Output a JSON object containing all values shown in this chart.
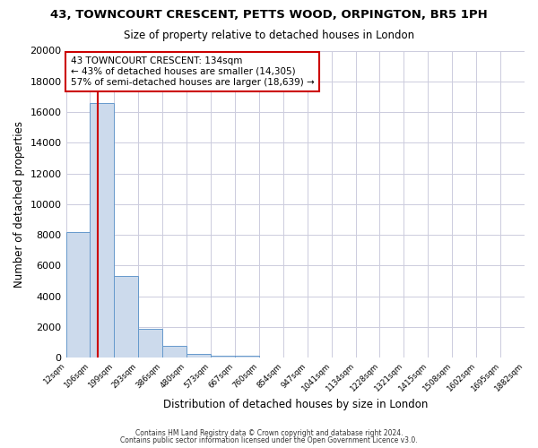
{
  "title": "43, TOWNCOURT CRESCENT, PETTS WOOD, ORPINGTON, BR5 1PH",
  "subtitle": "Size of property relative to detached houses in London",
  "xlabel": "Distribution of detached houses by size in London",
  "ylabel": "Number of detached properties",
  "bar_values": [
    8200,
    16600,
    5300,
    1850,
    750,
    250,
    150,
    150,
    0,
    0,
    0,
    0,
    0,
    0,
    0,
    0,
    0,
    0,
    0
  ],
  "bin_labels": [
    "12sqm",
    "106sqm",
    "199sqm",
    "293sqm",
    "386sqm",
    "480sqm",
    "573sqm",
    "667sqm",
    "760sqm",
    "854sqm",
    "947sqm",
    "1041sqm",
    "1134sqm",
    "1228sqm",
    "1321sqm",
    "1415sqm",
    "1508sqm",
    "1602sqm",
    "1695sqm",
    "1882sqm"
  ],
  "ylim": [
    0,
    20000
  ],
  "yticks": [
    0,
    2000,
    4000,
    6000,
    8000,
    10000,
    12000,
    14000,
    16000,
    18000,
    20000
  ],
  "bar_color": "#ccdaec",
  "bar_edge_color": "#6699cc",
  "vline_x": 1.3,
  "vline_color": "#cc0000",
  "annotation_title": "43 TOWNCOURT CRESCENT: 134sqm",
  "annotation_line1": "← 43% of detached houses are smaller (14,305)",
  "annotation_line2": "57% of semi-detached houses are larger (18,639) →",
  "annotation_box_facecolor": "#ffffff",
  "annotation_box_edgecolor": "#cc0000",
  "footer1": "Contains HM Land Registry data © Crown copyright and database right 2024.",
  "footer2": "Contains public sector information licensed under the Open Government Licence v3.0.",
  "background_color": "#ffffff",
  "plot_background_color": "#ffffff",
  "grid_color": "#ccccdd"
}
